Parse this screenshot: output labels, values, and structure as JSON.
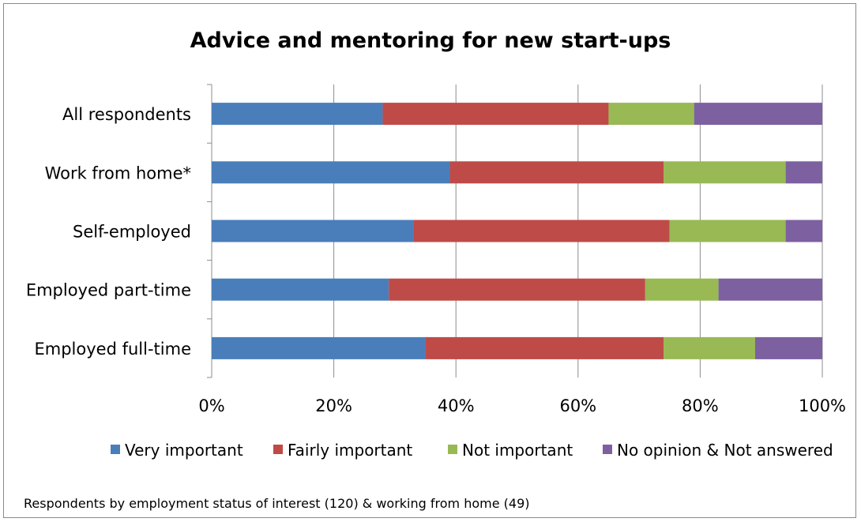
{
  "chart_data": {
    "type": "bar",
    "orientation": "horizontal",
    "stacked": true,
    "normalized_percent": true,
    "title": "Advice and mentoring for new start-ups",
    "categories": [
      "All respondents",
      "Work from home*",
      "Self-employed",
      "Employed part-time",
      "Employed full-time"
    ],
    "series": [
      {
        "name": "Very important",
        "color": "#4a7ebb",
        "values": [
          28,
          39,
          33,
          29,
          35
        ]
      },
      {
        "name": "Fairly important",
        "color": "#be4b48",
        "values": [
          37,
          35,
          42,
          42,
          39
        ]
      },
      {
        "name": "Not important",
        "color": "#98b954",
        "values": [
          14,
          20,
          19,
          12,
          15
        ]
      },
      {
        "name": "No opinion & Not answered",
        "color": "#7d60a0",
        "values": [
          21,
          6,
          6,
          17,
          11
        ]
      }
    ],
    "x_ticks": [
      "0%",
      "20%",
      "40%",
      "60%",
      "80%",
      "100%"
    ],
    "xlim": [
      0,
      100
    ],
    "grid": true,
    "legend": "bottom",
    "footnote": "Respondents by employment status of interest (120) & working from home (49)"
  }
}
